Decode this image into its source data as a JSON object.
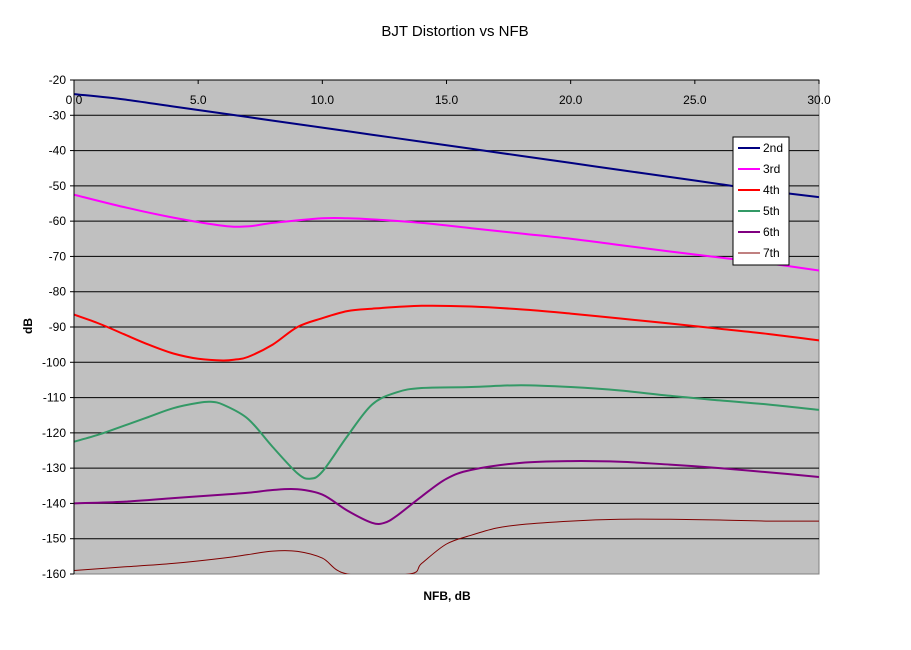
{
  "chart_data": {
    "type": "line",
    "title": "BJT Distortion vs NFB",
    "xlabel": "NFB, dB",
    "ylabel": "dB",
    "xlim": [
      0,
      30
    ],
    "ylim": [
      -160,
      -20
    ],
    "x_ticks": [
      "0.0",
      "5.0",
      "10.0",
      "15.0",
      "20.0",
      "25.0",
      "30.0"
    ],
    "y_ticks": [
      "-20",
      "-30",
      "-40",
      "-50",
      "-60",
      "-70",
      "-80",
      "-90",
      "-100",
      "-110",
      "-120",
      "-130",
      "-140",
      "-150",
      "-160"
    ],
    "x_axis_position": "top",
    "grid": "horizontal",
    "plot_background": "#c0c0c0",
    "legend_position": "right",
    "series": [
      {
        "name": "2nd",
        "color": "#000080",
        "x": [
          0,
          2,
          4,
          6,
          8,
          10,
          12,
          14,
          16,
          18,
          20,
          22,
          24,
          26,
          28,
          30
        ],
        "y": [
          -24,
          -25.5,
          -27.5,
          -29.5,
          -31.5,
          -33.5,
          -35.5,
          -37.5,
          -39.5,
          -41.5,
          -43.5,
          -45.5,
          -47.5,
          -49.5,
          -51.5,
          -53.2
        ]
      },
      {
        "name": "3rd",
        "color": "#ff00ff",
        "x": [
          0,
          2,
          4,
          6,
          7,
          8,
          10,
          11,
          12,
          14,
          16,
          18,
          20,
          22,
          24,
          26,
          28,
          30
        ],
        "y": [
          -52.5,
          -56,
          -59,
          -61.3,
          -61.5,
          -60.5,
          -59.2,
          -59.2,
          -59.5,
          -60.5,
          -62,
          -63.5,
          -65,
          -66.8,
          -68.6,
          -70.3,
          -72,
          -74
        ]
      },
      {
        "name": "4th",
        "color": "#ff0000",
        "x": [
          0,
          1,
          2,
          3,
          4,
          5,
          6,
          6.5,
          7,
          8,
          9,
          10,
          11,
          12,
          14,
          16,
          18,
          20,
          22,
          24,
          26,
          28,
          30
        ],
        "y": [
          -86.5,
          -89,
          -92,
          -95,
          -97.5,
          -99,
          -99.5,
          -99.2,
          -98.5,
          -95,
          -90,
          -87.5,
          -85.5,
          -84.8,
          -84,
          -84.2,
          -85,
          -86.2,
          -87.6,
          -89,
          -90.5,
          -92,
          -93.8
        ]
      },
      {
        "name": "5th",
        "color": "#339966",
        "x": [
          0,
          1,
          2,
          3,
          4,
          5,
          5.5,
          6,
          7,
          8,
          9,
          9.5,
          10,
          11,
          12,
          13,
          14,
          16,
          18,
          20,
          22,
          24,
          26,
          28,
          30
        ],
        "y": [
          -122.5,
          -120.5,
          -118,
          -115.5,
          -113,
          -111.5,
          -111.2,
          -112,
          -116,
          -124,
          -131.5,
          -133,
          -131,
          -121,
          -112,
          -108.5,
          -107.3,
          -107,
          -106.5,
          -107,
          -108,
          -109.5,
          -110.8,
          -112,
          -113.5
        ]
      },
      {
        "name": "6th",
        "color": "#800080",
        "x": [
          0,
          2,
          4,
          6,
          7,
          8,
          9,
          10,
          11,
          12,
          12.5,
          13,
          14,
          15,
          16,
          18,
          20,
          22,
          24,
          26,
          28,
          30
        ],
        "y": [
          -140,
          -139.5,
          -138.5,
          -137.5,
          -137,
          -136.2,
          -136,
          -137.5,
          -142,
          -145.5,
          -145.5,
          -143.5,
          -138,
          -133,
          -130.5,
          -128.5,
          -128,
          -128.2,
          -129,
          -130,
          -131.2,
          -132.5
        ]
      },
      {
        "name": "7th",
        "color": "#800000",
        "x": [
          0,
          2,
          4,
          6,
          7,
          8,
          9,
          10,
          11,
          13.5,
          14,
          15,
          16,
          17,
          18,
          20,
          22,
          24,
          26,
          28,
          30
        ],
        "y": [
          -159,
          -158,
          -157,
          -155.5,
          -154.5,
          -153.5,
          -153.6,
          -155.5,
          -160,
          -160,
          -157,
          -151.5,
          -149,
          -147,
          -146,
          -145,
          -144.5,
          -144.5,
          -144.7,
          -145,
          -145
        ]
      }
    ]
  }
}
